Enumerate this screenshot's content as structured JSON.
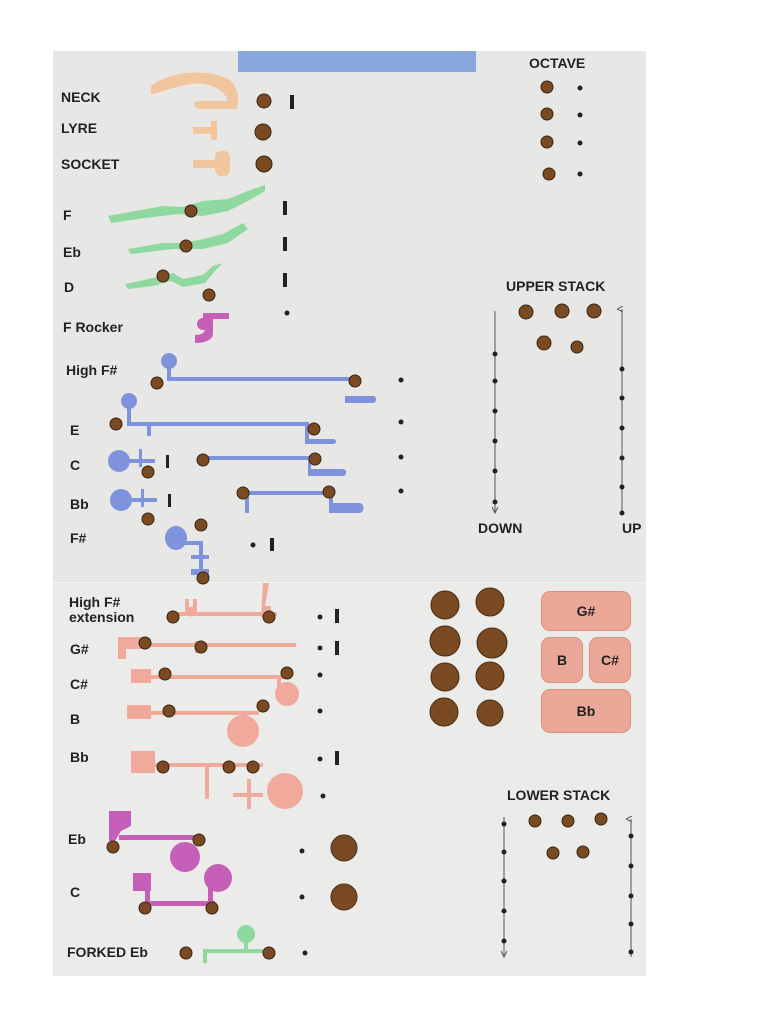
{
  "labels": {
    "neck": "NECK",
    "lyre": "LYRE",
    "socket": "SOCKET",
    "f": "F",
    "eb": "Eb",
    "d": "D",
    "f_rocker": "F Rocker",
    "high_f_sharp": "High F#",
    "e": "E",
    "c": "C",
    "bb": "Bb",
    "f_sharp": "F#",
    "high_f_sharp_ext_1": "High F#",
    "high_f_sharp_ext_2": "extension",
    "g_sharp": "G#",
    "c_sharp": "C#",
    "b": "B",
    "bb_lower": "Bb",
    "eb_lower": "Eb",
    "c_lower": "C",
    "forked_eb": "FORKED Eb"
  },
  "sections": {
    "octave": "OCTAVE",
    "upper_stack": "UPPER STACK",
    "lower_stack": "LOWER STACK",
    "down": "DOWN",
    "up": "UP"
  },
  "table_keys": {
    "g_sharp": "G#",
    "b": "B",
    "c_sharp": "C#",
    "bb": "Bb"
  },
  "colors": {
    "neck": "#f1c59d",
    "green": "#8fd9a0",
    "magenta": "#c65fb8",
    "blue": "#7f93dc",
    "salmon": "#f0a99b",
    "pad": "#7a4b22",
    "header": "#8aa6de"
  }
}
